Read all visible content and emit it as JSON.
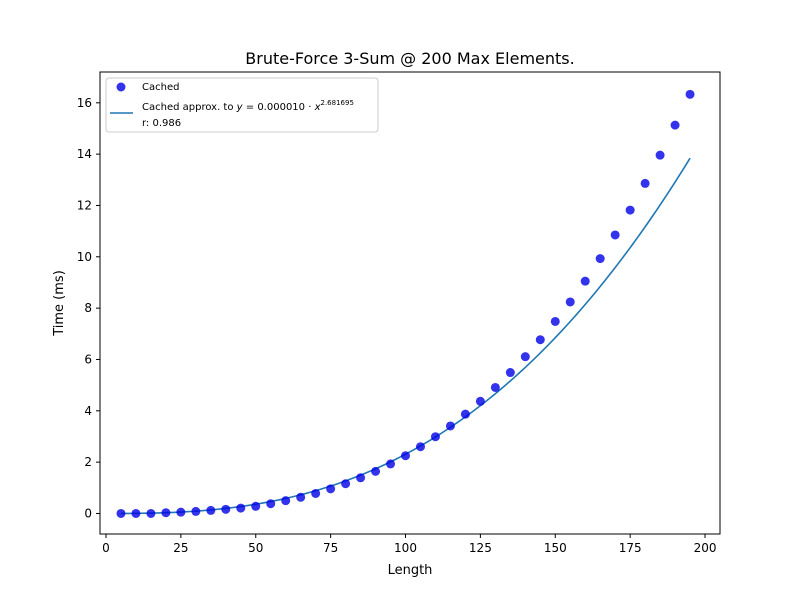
{
  "chart_data": {
    "type": "scatter",
    "title": "Brute-Force 3-Sum @ 200 Max Elements.",
    "xlabel": "Length",
    "ylabel": "Time (ms)",
    "xlim": [
      -2,
      205
    ],
    "ylim": [
      -0.8,
      17.2
    ],
    "xticks": [
      0,
      25,
      50,
      75,
      100,
      125,
      150,
      175,
      200
    ],
    "yticks": [
      0,
      2,
      4,
      6,
      8,
      10,
      12,
      14,
      16
    ],
    "grid": false,
    "legend_position": "top-left",
    "legend": {
      "scatter_label": "Cached",
      "fit_label_prefix": "Cached approx. to ",
      "fit_equation_lhs": "y",
      "fit_equation_eq": " = 0.000010 · ",
      "fit_equation_base": "x",
      "fit_equation_exponent": "2.681695",
      "r_label": "r: 0.986"
    },
    "series": [
      {
        "name": "Cached",
        "kind": "scatter",
        "color": "#0000e6",
        "x": [
          5,
          10,
          15,
          20,
          25,
          30,
          35,
          40,
          45,
          50,
          55,
          60,
          65,
          70,
          75,
          80,
          85,
          90,
          95,
          100,
          105,
          110,
          115,
          120,
          125,
          130,
          135,
          140,
          145,
          150,
          155,
          160,
          165,
          170,
          175,
          180,
          185,
          190,
          195
        ],
        "y": [
          0.0,
          0.0,
          0.0,
          0.03,
          0.05,
          0.08,
          0.12,
          0.16,
          0.21,
          0.28,
          0.38,
          0.5,
          0.63,
          0.78,
          0.96,
          1.16,
          1.39,
          1.64,
          1.93,
          2.25,
          2.6,
          2.99,
          3.41,
          3.87,
          4.37,
          4.91,
          5.49,
          6.11,
          6.77,
          7.48,
          8.24,
          9.05,
          9.93,
          10.85,
          11.82,
          12.86,
          13.96,
          15.13,
          16.33
        ]
      },
      {
        "name": "Cached approx.",
        "kind": "line",
        "color": "#1f77b4",
        "coefficient": 1e-05,
        "exponent": 2.681695,
        "x_range": [
          5,
          195
        ]
      }
    ]
  }
}
